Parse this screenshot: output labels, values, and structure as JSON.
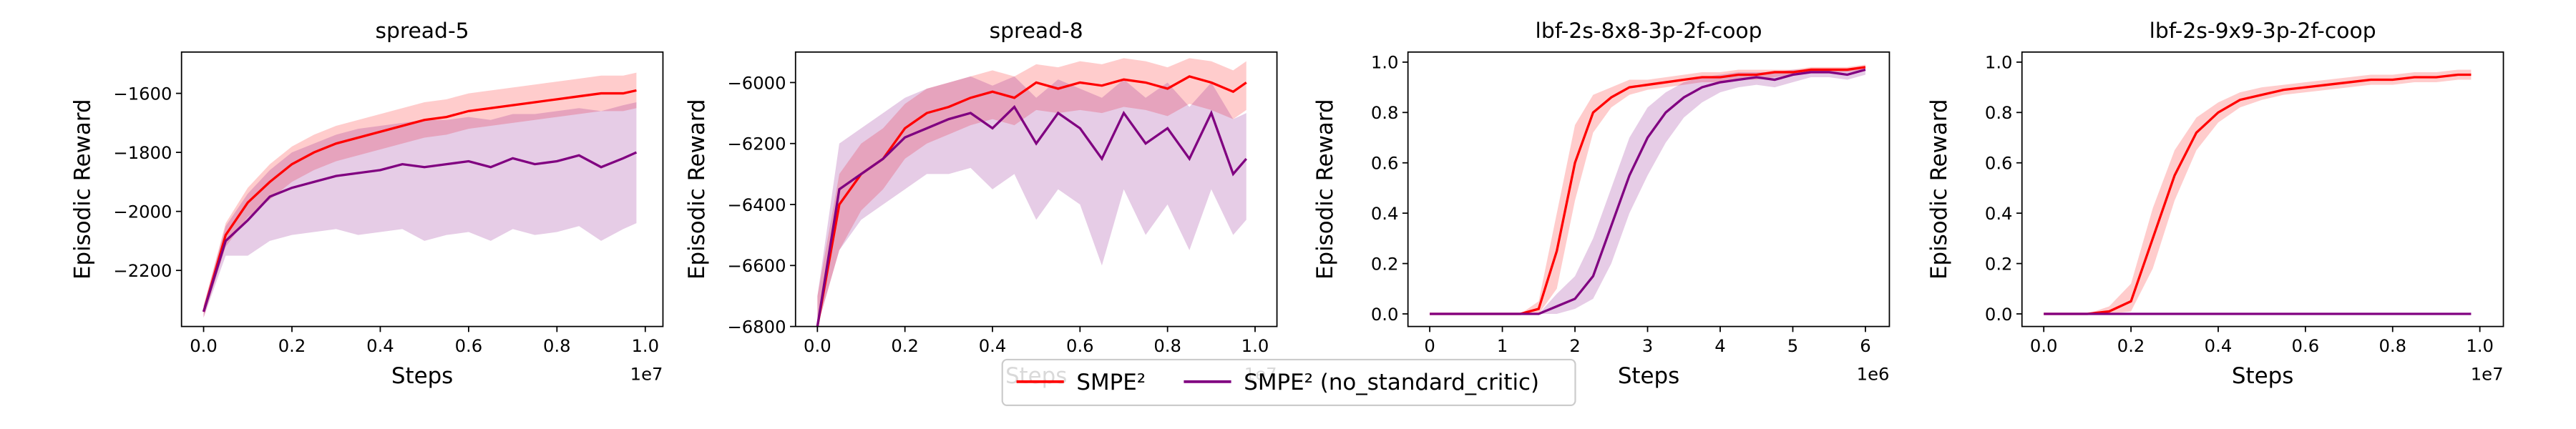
{
  "chart_data": [
    {
      "type": "line",
      "title": "spread-5",
      "xlabel": "Steps",
      "ylabel": "Episodic Reward",
      "x_offset_label": "1e7",
      "x": [
        0,
        0.05,
        0.1,
        0.15,
        0.2,
        0.25,
        0.3,
        0.35,
        0.4,
        0.45,
        0.5,
        0.55,
        0.6,
        0.65,
        0.7,
        0.75,
        0.8,
        0.85,
        0.9,
        0.95,
        0.98
      ],
      "xlim": [
        -0.05,
        1.04
      ],
      "xticks": [
        {
          "value": 0,
          "label": "0.0"
        },
        0.2,
        0.4,
        0.6,
        0.8,
        {
          "value": 1,
          "label": "1.0"
        }
      ],
      "ylim": [
        -2390,
        -1460
      ],
      "yticks": [
        {
          "value": -2200,
          "label": "−2200"
        },
        {
          "value": -2000,
          "label": "−2000"
        },
        {
          "value": -1800,
          "label": "−1800"
        },
        {
          "value": -1600,
          "label": "−1600"
        }
      ],
      "series": [
        {
          "name": "SMPE²",
          "color": "#ff0000",
          "values": [
            -2340,
            -2080,
            -1970,
            -1900,
            -1840,
            -1800,
            -1770,
            -1750,
            -1730,
            -1710,
            -1690,
            -1680,
            -1660,
            -1650,
            -1640,
            -1630,
            -1620,
            -1610,
            -1600,
            -1600,
            -1590
          ],
          "lower": [
            -2360,
            -2120,
            -2020,
            -1960,
            -1900,
            -1860,
            -1830,
            -1810,
            -1790,
            -1770,
            -1750,
            -1740,
            -1720,
            -1710,
            -1700,
            -1690,
            -1680,
            -1670,
            -1660,
            -1660,
            -1650
          ],
          "upper": [
            -2320,
            -2040,
            -1920,
            -1840,
            -1780,
            -1740,
            -1710,
            -1690,
            -1670,
            -1650,
            -1630,
            -1620,
            -1600,
            -1590,
            -1580,
            -1570,
            -1560,
            -1550,
            -1540,
            -1540,
            -1530
          ]
        },
        {
          "name": "SMPE² (no_standard_critic)",
          "color": "#800080",
          "values": [
            -2340,
            -2100,
            -2030,
            -1950,
            -1920,
            -1900,
            -1880,
            -1870,
            -1860,
            -1840,
            -1850,
            -1840,
            -1830,
            -1850,
            -1820,
            -1840,
            -1830,
            -1810,
            -1850,
            -1820,
            -1800
          ],
          "lower": [
            -2360,
            -2150,
            -2150,
            -2100,
            -2080,
            -2070,
            -2060,
            -2080,
            -2070,
            -2060,
            -2100,
            -2080,
            -2070,
            -2100,
            -2060,
            -2080,
            -2070,
            -2050,
            -2100,
            -2060,
            -2040
          ],
          "upper": [
            -2320,
            -2050,
            -1940,
            -1860,
            -1800,
            -1770,
            -1740,
            -1720,
            -1710,
            -1700,
            -1690,
            -1690,
            -1680,
            -1690,
            -1670,
            -1670,
            -1660,
            -1650,
            -1660,
            -1640,
            -1630
          ]
        }
      ]
    },
    {
      "type": "line",
      "title": "spread-8",
      "xlabel": "Steps",
      "ylabel": "Episodic Reward",
      "x_offset_label": "1e7",
      "x": [
        0,
        0.05,
        0.1,
        0.15,
        0.2,
        0.25,
        0.3,
        0.35,
        0.4,
        0.45,
        0.5,
        0.55,
        0.6,
        0.65,
        0.7,
        0.75,
        0.8,
        0.85,
        0.9,
        0.95,
        0.98
      ],
      "xlim": [
        -0.05,
        1.05
      ],
      "xticks": [
        {
          "value": 0,
          "label": "0.0"
        },
        0.2,
        0.4,
        0.6,
        0.8,
        {
          "value": 1,
          "label": "1.0"
        }
      ],
      "ylim": [
        -6800,
        -5900
      ],
      "yticks": [
        {
          "value": -6800,
          "label": "−6800"
        },
        {
          "value": -6600,
          "label": "−6600"
        },
        {
          "value": -6400,
          "label": "−6400"
        },
        {
          "value": -6200,
          "label": "−6200"
        },
        {
          "value": -6000,
          "label": "−6000"
        }
      ],
      "series": [
        {
          "name": "SMPE²",
          "color": "#ff0000",
          "values": [
            -6800,
            -6400,
            -6300,
            -6250,
            -6150,
            -6100,
            -6080,
            -6050,
            -6030,
            -6050,
            -6000,
            -6020,
            -6000,
            -6010,
            -5990,
            -6000,
            -6020,
            -5980,
            -6000,
            -6030,
            -6000
          ],
          "lower": [
            -6800,
            -6550,
            -6420,
            -6350,
            -6250,
            -6200,
            -6170,
            -6140,
            -6120,
            -6140,
            -6090,
            -6100,
            -6090,
            -6100,
            -6080,
            -6090,
            -6110,
            -6070,
            -6090,
            -6120,
            -6090
          ],
          "upper": [
            -6700,
            -6300,
            -6200,
            -6150,
            -6070,
            -6020,
            -6000,
            -5980,
            -5960,
            -5980,
            -5940,
            -5950,
            -5930,
            -5940,
            -5920,
            -5930,
            -5950,
            -5920,
            -5930,
            -5960,
            -5930
          ]
        },
        {
          "name": "SMPE² (no_standard_critic)",
          "color": "#800080",
          "values": [
            -6800,
            -6350,
            -6300,
            -6250,
            -6180,
            -6150,
            -6120,
            -6100,
            -6150,
            -6080,
            -6200,
            -6100,
            -6150,
            -6250,
            -6100,
            -6200,
            -6150,
            -6250,
            -6100,
            -6300,
            -6250
          ],
          "lower": [
            -6800,
            -6550,
            -6450,
            -6400,
            -6350,
            -6300,
            -6300,
            -6280,
            -6350,
            -6300,
            -6450,
            -6350,
            -6400,
            -6600,
            -6350,
            -6500,
            -6400,
            -6550,
            -6350,
            -6500,
            -6450
          ],
          "upper": [
            -6700,
            -6200,
            -6150,
            -6100,
            -6050,
            -6020,
            -6000,
            -5980,
            -6010,
            -5980,
            -6050,
            -5990,
            -6020,
            -6050,
            -5990,
            -6050,
            -6000,
            -6080,
            -6000,
            -6120,
            -6100
          ]
        }
      ]
    },
    {
      "type": "line",
      "title": "lbf-2s-8x8-3p-2f-coop",
      "xlabel": "Steps",
      "ylabel": "Episodic Reward",
      "x_offset_label": "1e6",
      "x": [
        0,
        0.25,
        0.5,
        0.75,
        1,
        1.25,
        1.5,
        1.75,
        2,
        2.25,
        2.5,
        2.75,
        3,
        3.25,
        3.5,
        3.75,
        4,
        4.25,
        4.5,
        4.75,
        5,
        5.25,
        5.5,
        5.75,
        6
      ],
      "xlim": [
        -0.3,
        6.33
      ],
      "xticks": [
        0,
        1,
        2,
        3,
        4,
        5,
        6
      ],
      "ylim": [
        -0.05,
        1.04
      ],
      "yticks": [
        {
          "value": 0,
          "label": "0.0"
        },
        0.2,
        0.4,
        0.6,
        0.8,
        {
          "value": 1,
          "label": "1.0"
        }
      ],
      "series": [
        {
          "name": "SMPE²",
          "color": "#ff0000",
          "values": [
            0,
            0,
            0,
            0,
            0,
            0,
            0.02,
            0.25,
            0.6,
            0.8,
            0.86,
            0.9,
            0.91,
            0.92,
            0.93,
            0.94,
            0.94,
            0.95,
            0.95,
            0.96,
            0.96,
            0.97,
            0.97,
            0.97,
            0.98
          ],
          "lower": [
            0,
            0,
            0,
            0,
            0,
            0,
            0,
            0.1,
            0.45,
            0.72,
            0.82,
            0.87,
            0.89,
            0.9,
            0.91,
            0.92,
            0.92,
            0.93,
            0.93,
            0.94,
            0.95,
            0.96,
            0.96,
            0.96,
            0.97
          ],
          "upper": [
            0,
            0,
            0,
            0,
            0,
            0,
            0.05,
            0.4,
            0.75,
            0.87,
            0.9,
            0.93,
            0.93,
            0.94,
            0.95,
            0.96,
            0.96,
            0.97,
            0.97,
            0.97,
            0.97,
            0.98,
            0.98,
            0.98,
            0.99
          ]
        },
        {
          "name": "SMPE² (no_standard_critic)",
          "color": "#800080",
          "values": [
            0,
            0,
            0,
            0,
            0,
            0,
            0,
            0.03,
            0.06,
            0.15,
            0.35,
            0.55,
            0.7,
            0.8,
            0.86,
            0.9,
            0.92,
            0.93,
            0.94,
            0.93,
            0.95,
            0.96,
            0.96,
            0.95,
            0.97
          ],
          "lower": [
            0,
            0,
            0,
            0,
            0,
            0,
            0,
            0,
            0.02,
            0.06,
            0.2,
            0.4,
            0.55,
            0.68,
            0.78,
            0.84,
            0.88,
            0.9,
            0.91,
            0.9,
            0.92,
            0.94,
            0.94,
            0.93,
            0.95
          ],
          "upper": [
            0,
            0,
            0,
            0,
            0,
            0,
            0,
            0.08,
            0.15,
            0.3,
            0.5,
            0.7,
            0.82,
            0.88,
            0.92,
            0.94,
            0.95,
            0.96,
            0.96,
            0.96,
            0.97,
            0.97,
            0.97,
            0.97,
            0.98
          ]
        }
      ]
    },
    {
      "type": "line",
      "title": "lbf-2s-9x9-3p-2f-coop",
      "xlabel": "Steps",
      "ylabel": "Episodic Reward",
      "x_offset_label": "1e7",
      "x": [
        0,
        0.05,
        0.1,
        0.15,
        0.2,
        0.25,
        0.3,
        0.35,
        0.4,
        0.45,
        0.5,
        0.55,
        0.6,
        0.65,
        0.7,
        0.75,
        0.8,
        0.85,
        0.9,
        0.95,
        0.98
      ],
      "xlim": [
        -0.05,
        1.054
      ],
      "xticks": [
        {
          "value": 0,
          "label": "0.0"
        },
        0.2,
        0.4,
        0.6,
        0.8,
        {
          "value": 1,
          "label": "1.0"
        }
      ],
      "ylim": [
        -0.05,
        1.04
      ],
      "yticks": [
        {
          "value": 0,
          "label": "0.0"
        },
        0.2,
        0.4,
        0.6,
        0.8,
        {
          "value": 1,
          "label": "1.0"
        }
      ],
      "series": [
        {
          "name": "SMPE²",
          "color": "#ff0000",
          "values": [
            0,
            0,
            0,
            0.01,
            0.05,
            0.3,
            0.55,
            0.72,
            0.8,
            0.85,
            0.87,
            0.89,
            0.9,
            0.91,
            0.92,
            0.93,
            0.93,
            0.94,
            0.94,
            0.95,
            0.95
          ],
          "lower": [
            0,
            0,
            0,
            0,
            0.01,
            0.18,
            0.45,
            0.65,
            0.76,
            0.82,
            0.85,
            0.87,
            0.88,
            0.89,
            0.9,
            0.91,
            0.91,
            0.92,
            0.92,
            0.93,
            0.93
          ],
          "upper": [
            0,
            0,
            0,
            0.03,
            0.12,
            0.42,
            0.65,
            0.78,
            0.84,
            0.88,
            0.9,
            0.91,
            0.92,
            0.93,
            0.94,
            0.95,
            0.95,
            0.96,
            0.96,
            0.97,
            0.97
          ]
        },
        {
          "name": "SMPE² (no_standard_critic)",
          "color": "#800080",
          "values": [
            0,
            0,
            0,
            0,
            0,
            0,
            0,
            0,
            0,
            0,
            0,
            0,
            0,
            0,
            0,
            0,
            0,
            0,
            0,
            0,
            0
          ]
        }
      ]
    }
  ]
}
